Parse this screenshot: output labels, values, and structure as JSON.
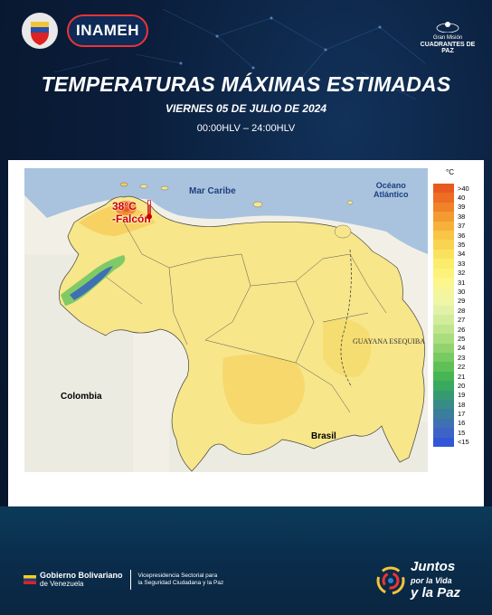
{
  "header": {
    "inameh_logo": "INAMEH",
    "shield_icon": "venezuela-shield-icon",
    "gran_mision_line1": "Gran Misión",
    "gran_mision_line2": "CUADRANTES DE PAZ"
  },
  "title": "TEMPERATURAS MÁXIMAS ESTIMADAS",
  "subtitle": "VIERNES 05 DE JULIO DE 2024",
  "time_range": "00:00HLV – 24:00HLV",
  "map": {
    "labels": {
      "mar_caribe": "Mar Caribe",
      "oceano_line1": "Océano",
      "oceano_line2": "Atlántico",
      "colombia": "Colombia",
      "brasil": "Brasil",
      "guayana": "GUAYANA ESEQUIBA"
    },
    "annotation": {
      "temperature": "38°C",
      "state": "-Falcón"
    }
  },
  "legend": {
    "unit": "°C",
    "entries": [
      {
        "label": ">40",
        "color": "#e8591f"
      },
      {
        "label": "40",
        "color": "#ec6d23"
      },
      {
        "label": "39",
        "color": "#f08229"
      },
      {
        "label": "38",
        "color": "#f39a30"
      },
      {
        "label": "37",
        "color": "#f6b13a"
      },
      {
        "label": "36",
        "color": "#f8c545"
      },
      {
        "label": "35",
        "color": "#f9d451"
      },
      {
        "label": "34",
        "color": "#fbe25e"
      },
      {
        "label": "33",
        "color": "#fcec6c"
      },
      {
        "label": "32",
        "color": "#fdf27a"
      },
      {
        "label": "31",
        "color": "#fdf68a"
      },
      {
        "label": "30",
        "color": "#f7f59a"
      },
      {
        "label": "29",
        "color": "#eef5a5"
      },
      {
        "label": "28",
        "color": "#e2f1a8"
      },
      {
        "label": "27",
        "color": "#d2ec9c"
      },
      {
        "label": "26",
        "color": "#bfe58d"
      },
      {
        "label": "25",
        "color": "#a9dd7e"
      },
      {
        "label": "24",
        "color": "#91d46f"
      },
      {
        "label": "23",
        "color": "#78ca62"
      },
      {
        "label": "22",
        "color": "#5fc058"
      },
      {
        "label": "21",
        "color": "#46b653"
      },
      {
        "label": "20",
        "color": "#38a95f"
      },
      {
        "label": "19",
        "color": "#359a72"
      },
      {
        "label": "18",
        "color": "#368c86"
      },
      {
        "label": "17",
        "color": "#3a7e9b"
      },
      {
        "label": "16",
        "color": "#3f70b2"
      },
      {
        "label": "15",
        "color": "#3e63c6"
      },
      {
        "label": "<15",
        "color": "#3157d6"
      }
    ]
  },
  "footer": {
    "gobierno_line1": "Gobierno Bolivariano",
    "gobierno_line2": "de Venezuela",
    "vice_line1": "Vicepresidencia Sectorial para",
    "vice_line2": "la Seguridad Ciudadana y la Paz",
    "juntos_line1": "Juntos",
    "juntos_line2": "por la Vida",
    "juntos_line3": "y la Paz"
  }
}
